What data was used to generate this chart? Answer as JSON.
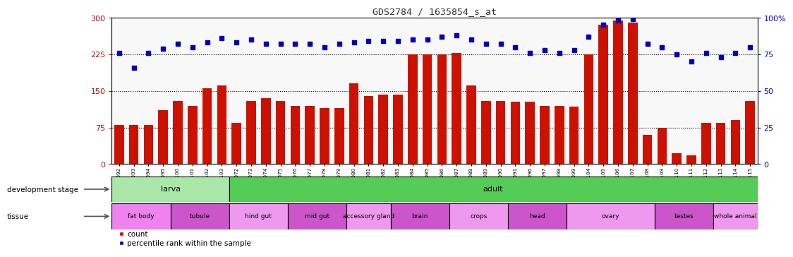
{
  "title": "GDS2784 / 1635854_s_at",
  "samples": [
    "GSM188092",
    "GSM188093",
    "GSM188094",
    "GSM188095",
    "GSM188100",
    "GSM188101",
    "GSM188102",
    "GSM188103",
    "GSM188072",
    "GSM188073",
    "GSM188074",
    "GSM188075",
    "GSM188076",
    "GSM188077",
    "GSM188078",
    "GSM188079",
    "GSM188080",
    "GSM188081",
    "GSM188082",
    "GSM188083",
    "GSM188084",
    "GSM188085",
    "GSM188086",
    "GSM188087",
    "GSM188088",
    "GSM188089",
    "GSM188090",
    "GSM188091",
    "GSM188096",
    "GSM188097",
    "GSM188098",
    "GSM188099",
    "GSM188104",
    "GSM188105",
    "GSM188106",
    "GSM188107",
    "GSM188108",
    "GSM188109",
    "GSM188110",
    "GSM188111",
    "GSM188112",
    "GSM188113",
    "GSM188114",
    "GSM188115"
  ],
  "count_values": [
    80,
    80,
    80,
    110,
    130,
    120,
    155,
    162,
    85,
    130,
    135,
    130,
    120,
    120,
    115,
    115,
    165,
    140,
    143,
    143,
    225,
    225,
    225,
    228,
    162,
    130,
    130,
    128,
    128,
    120,
    120,
    118,
    225,
    285,
    295,
    290,
    60,
    75,
    22,
    18,
    85,
    85,
    90,
    130
  ],
  "percentile_values": [
    76,
    66,
    76,
    79,
    82,
    80,
    83,
    86,
    83,
    85,
    82,
    82,
    82,
    82,
    80,
    82,
    83,
    84,
    84,
    84,
    85,
    85,
    87,
    88,
    85,
    82,
    82,
    80,
    76,
    78,
    76,
    78,
    87,
    95,
    98,
    99,
    82,
    80,
    75,
    70,
    76,
    73,
    76,
    80
  ],
  "development_stages": [
    {
      "label": "larva",
      "start": 0,
      "end": 7,
      "color": "#aae8aa"
    },
    {
      "label": "adult",
      "start": 8,
      "end": 43,
      "color": "#55cc55"
    }
  ],
  "tissues": [
    {
      "label": "fat body",
      "start": 0,
      "end": 3,
      "color": "#ee82ee"
    },
    {
      "label": "tubule",
      "start": 4,
      "end": 7,
      "color": "#cc55cc"
    },
    {
      "label": "hind gut",
      "start": 8,
      "end": 11,
      "color": "#ee99ee"
    },
    {
      "label": "mid gut",
      "start": 12,
      "end": 15,
      "color": "#cc55cc"
    },
    {
      "label": "accessory gland",
      "start": 16,
      "end": 18,
      "color": "#ee99ee"
    },
    {
      "label": "brain",
      "start": 19,
      "end": 22,
      "color": "#cc55cc"
    },
    {
      "label": "crops",
      "start": 23,
      "end": 26,
      "color": "#ee99ee"
    },
    {
      "label": "head",
      "start": 27,
      "end": 30,
      "color": "#cc55cc"
    },
    {
      "label": "ovary",
      "start": 31,
      "end": 36,
      "color": "#ee99ee"
    },
    {
      "label": "testes",
      "start": 37,
      "end": 40,
      "color": "#cc55cc"
    },
    {
      "label": "whole animal",
      "start": 41,
      "end": 43,
      "color": "#ee99ee"
    }
  ],
  "left_yticks": [
    0,
    75,
    150,
    225,
    300
  ],
  "right_yticks": [
    0,
    25,
    50,
    75,
    100
  ],
  "ylim_left": [
    0,
    300
  ],
  "ylim_right": [
    0,
    100
  ],
  "bar_color": "#cc1100",
  "dot_color": "#0000bb",
  "title_color": "#333333",
  "left_tick_color": "#cc0000",
  "right_tick_color": "#0000cc",
  "bg_color": "#ffffff",
  "bar_bg_color": "#f8f8f8"
}
